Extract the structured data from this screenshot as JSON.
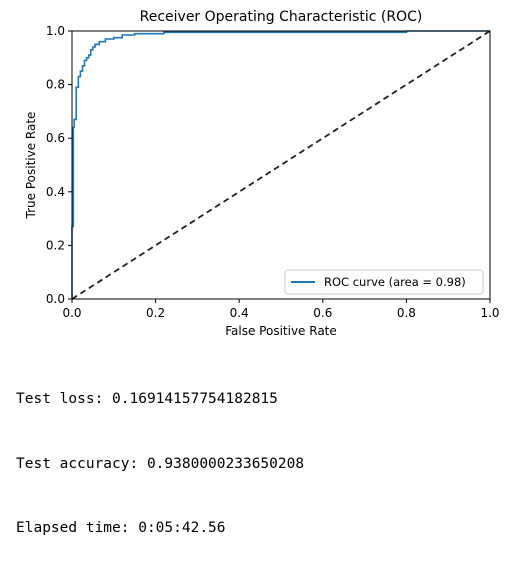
{
  "chart_data": {
    "type": "line",
    "title": "Receiver Operating Characteristic (ROC)",
    "xlabel": "False Positive Rate",
    "ylabel": "True Positive Rate",
    "xlim": [
      0.0,
      1.0
    ],
    "ylim": [
      0.0,
      1.0
    ],
    "xticks": [
      "0.0",
      "0.2",
      "0.4",
      "0.6",
      "0.8",
      "1.0"
    ],
    "yticks": [
      "0.0",
      "0.2",
      "0.4",
      "0.6",
      "0.8",
      "1.0"
    ],
    "grid": false,
    "legend_position": "lower-right",
    "series": [
      {
        "name": "ROC curve (area = 0.98)",
        "color": "#1f77b4",
        "style": "solid",
        "x": [
          0.0,
          0.0,
          0.003,
          0.003,
          0.005,
          0.005,
          0.01,
          0.01,
          0.015,
          0.015,
          0.02,
          0.02,
          0.025,
          0.025,
          0.03,
          0.03,
          0.035,
          0.035,
          0.04,
          0.04,
          0.045,
          0.045,
          0.05,
          0.05,
          0.055,
          0.055,
          0.065,
          0.065,
          0.08,
          0.08,
          0.1,
          0.1,
          0.12,
          0.12,
          0.15,
          0.15,
          0.22,
          0.22,
          0.8,
          0.8,
          1.0
        ],
        "y": [
          0.0,
          0.27,
          0.27,
          0.64,
          0.64,
          0.67,
          0.67,
          0.79,
          0.79,
          0.83,
          0.83,
          0.85,
          0.85,
          0.87,
          0.87,
          0.89,
          0.89,
          0.9,
          0.9,
          0.91,
          0.91,
          0.93,
          0.93,
          0.94,
          0.94,
          0.95,
          0.95,
          0.96,
          0.96,
          0.97,
          0.97,
          0.975,
          0.975,
          0.985,
          0.985,
          0.99,
          0.99,
          0.995,
          0.995,
          1.0,
          1.0
        ]
      },
      {
        "name": "",
        "color": "#222222",
        "style": "dashed",
        "x": [
          0.0,
          1.0
        ],
        "y": [
          0.0,
          1.0
        ]
      }
    ]
  },
  "output": {
    "loss": "Test loss: 0.16914157754182815",
    "accuracy": "Test accuracy: 0.9380000233650208",
    "elapsed": "Elapsed time: 0:05:42.56"
  }
}
